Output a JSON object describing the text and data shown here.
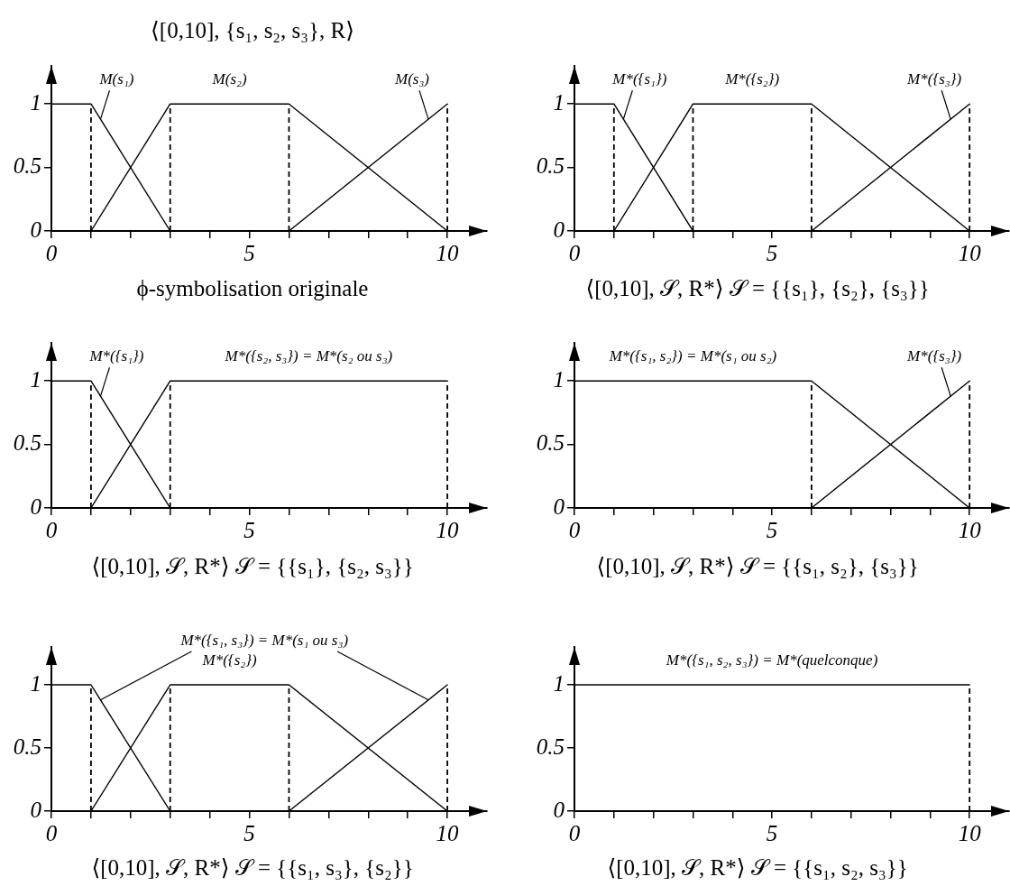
{
  "chart_data": [
    {
      "type": "line",
      "title": "⟨[0,10], {s₁, s₂, s₃}, R⟩",
      "annotations": [
        "ϕ-symbolisation originale"
      ],
      "xlim": [
        0,
        11
      ],
      "ylim": [
        0,
        1.3
      ],
      "xticks": [
        0,
        {
          "value": 1,
          "label": null
        },
        {
          "value": 2,
          "label": null
        },
        {
          "value": 3,
          "label": null
        },
        {
          "value": 4,
          "label": null
        },
        5,
        {
          "value": 6,
          "label": null
        },
        {
          "value": 7,
          "label": null
        },
        {
          "value": 8,
          "label": null
        },
        {
          "value": 9,
          "label": null
        },
        10
      ],
      "yticks": [
        0,
        0.5,
        1
      ],
      "series": [
        {
          "name": "M(s₁)",
          "color": "#000000",
          "x": [
            0,
            1,
            3
          ],
          "values": [
            1,
            1,
            0
          ]
        },
        {
          "name": "M(s₂)",
          "color": "#000000",
          "x": [
            1,
            3,
            6,
            10
          ],
          "values": [
            0,
            1,
            1,
            0
          ]
        },
        {
          "name": "M(s₃)",
          "color": "#000000",
          "x": [
            6,
            10
          ],
          "values": [
            0,
            1
          ]
        }
      ],
      "ref_lines": [
        {
          "axis": "x",
          "value": 1,
          "color": "#000000",
          "line_style": "dashed"
        },
        {
          "axis": "x",
          "value": 3,
          "color": "#000000",
          "line_style": "dashed"
        },
        {
          "axis": "x",
          "value": 6,
          "color": "#000000",
          "line_style": "dashed"
        },
        {
          "axis": "x",
          "value": 10,
          "color": "#000000",
          "line_style": "dashed"
        }
      ]
    },
    {
      "type": "line",
      "annotations": [
        "⟨[0,10], 𝒮, R*⟩ 𝒮 = {{s₁}, {s₂}, {s₃}}"
      ],
      "xlim": [
        0,
        11
      ],
      "ylim": [
        0,
        1.3
      ],
      "xticks": [
        0,
        {
          "value": 1,
          "label": null
        },
        {
          "value": 2,
          "label": null
        },
        {
          "value": 3,
          "label": null
        },
        {
          "value": 4,
          "label": null
        },
        5,
        {
          "value": 6,
          "label": null
        },
        {
          "value": 7,
          "label": null
        },
        {
          "value": 8,
          "label": null
        },
        {
          "value": 9,
          "label": null
        },
        10
      ],
      "yticks": [
        0,
        0.5,
        1
      ],
      "series": [
        {
          "name": "M*({s₁})",
          "color": "#000000",
          "x": [
            0,
            1,
            3
          ],
          "values": [
            1,
            1,
            0
          ]
        },
        {
          "name": "M*({s₂})",
          "color": "#000000",
          "x": [
            1,
            3,
            6,
            10
          ],
          "values": [
            0,
            1,
            1,
            0
          ]
        },
        {
          "name": "M*({s₃})",
          "color": "#000000",
          "x": [
            6,
            10
          ],
          "values": [
            0,
            1
          ]
        }
      ],
      "ref_lines": [
        {
          "axis": "x",
          "value": 1,
          "color": "#000000",
          "line_style": "dashed"
        },
        {
          "axis": "x",
          "value": 3,
          "color": "#000000",
          "line_style": "dashed"
        },
        {
          "axis": "x",
          "value": 6,
          "color": "#000000",
          "line_style": "dashed"
        },
        {
          "axis": "x",
          "value": 10,
          "color": "#000000",
          "line_style": "dashed"
        }
      ]
    },
    {
      "type": "line",
      "annotations": [
        "⟨[0,10], 𝒮, R*⟩ 𝒮 = {{s₁}, {s₂, s₃}}"
      ],
      "xlim": [
        0,
        11
      ],
      "ylim": [
        0,
        1.3
      ],
      "xticks": [
        0,
        {
          "value": 1,
          "label": null
        },
        {
          "value": 2,
          "label": null
        },
        {
          "value": 3,
          "label": null
        },
        {
          "value": 4,
          "label": null
        },
        5,
        {
          "value": 6,
          "label": null
        },
        {
          "value": 7,
          "label": null
        },
        {
          "value": 8,
          "label": null
        },
        {
          "value": 9,
          "label": null
        },
        10
      ],
      "yticks": [
        0,
        0.5,
        1
      ],
      "series": [
        {
          "name": "M*({s₁})",
          "color": "#000000",
          "x": [
            0,
            1,
            3
          ],
          "values": [
            1,
            1,
            0
          ]
        },
        {
          "name": "M*({s₂, s₃}) = M*(s₂ ou s₃)",
          "color": "#000000",
          "x": [
            1,
            3,
            10
          ],
          "values": [
            0,
            1,
            1
          ]
        }
      ],
      "ref_lines": [
        {
          "axis": "x",
          "value": 1,
          "color": "#000000",
          "line_style": "dashed"
        },
        {
          "axis": "x",
          "value": 3,
          "color": "#000000",
          "line_style": "dashed"
        },
        {
          "axis": "x",
          "value": 10,
          "color": "#000000",
          "line_style": "dashed"
        }
      ]
    },
    {
      "type": "line",
      "annotations": [
        "⟨[0,10], 𝒮, R*⟩ 𝒮 = {{s₁, s₂}, {s₃}}"
      ],
      "xlim": [
        0,
        11
      ],
      "ylim": [
        0,
        1.3
      ],
      "xticks": [
        0,
        {
          "value": 1,
          "label": null
        },
        {
          "value": 2,
          "label": null
        },
        {
          "value": 3,
          "label": null
        },
        {
          "value": 4,
          "label": null
        },
        5,
        {
          "value": 6,
          "label": null
        },
        {
          "value": 7,
          "label": null
        },
        {
          "value": 8,
          "label": null
        },
        {
          "value": 9,
          "label": null
        },
        10
      ],
      "yticks": [
        0,
        0.5,
        1
      ],
      "series": [
        {
          "name": "M*({s₁, s₂}) = M*(s₁ ou s₂)",
          "color": "#000000",
          "x": [
            0,
            6,
            10
          ],
          "values": [
            1,
            1,
            0
          ]
        },
        {
          "name": "M*({s₃})",
          "color": "#000000",
          "x": [
            6,
            10
          ],
          "values": [
            0,
            1
          ]
        }
      ],
      "ref_lines": [
        {
          "axis": "x",
          "value": 6,
          "color": "#000000",
          "line_style": "dashed"
        },
        {
          "axis": "x",
          "value": 10,
          "color": "#000000",
          "line_style": "dashed"
        }
      ]
    },
    {
      "type": "line",
      "annotations": [
        "⟨[0,10], 𝒮, R*⟩ 𝒮 = {{s₁, s₃}, {s₂}}"
      ],
      "xlim": [
        0,
        11
      ],
      "ylim": [
        0,
        1.3
      ],
      "xticks": [
        0,
        {
          "value": 1,
          "label": null
        },
        {
          "value": 2,
          "label": null
        },
        {
          "value": 3,
          "label": null
        },
        {
          "value": 4,
          "label": null
        },
        5,
        {
          "value": 6,
          "label": null
        },
        {
          "value": 7,
          "label": null
        },
        {
          "value": 8,
          "label": null
        },
        {
          "value": 9,
          "label": null
        },
        10
      ],
      "yticks": [
        0,
        0.5,
        1
      ],
      "series": [
        {
          "name": "M*({s₁, s₃}) = M*(s₁ ou s₃)",
          "color": "#000000",
          "x": [
            0,
            1,
            3,
            6,
            10
          ],
          "values": [
            1,
            1,
            0,
            0,
            1
          ]
        },
        {
          "name": "M*({s₂})",
          "color": "#000000",
          "x": [
            1,
            3,
            6,
            10
          ],
          "values": [
            0,
            1,
            1,
            0
          ]
        }
      ],
      "ref_lines": [
        {
          "axis": "x",
          "value": 1,
          "color": "#000000",
          "line_style": "dashed"
        },
        {
          "axis": "x",
          "value": 3,
          "color": "#000000",
          "line_style": "dashed"
        },
        {
          "axis": "x",
          "value": 6,
          "color": "#000000",
          "line_style": "dashed"
        },
        {
          "axis": "x",
          "value": 10,
          "color": "#000000",
          "line_style": "dashed"
        }
      ]
    },
    {
      "type": "line",
      "annotations": [
        "⟨[0,10], 𝒮, R*⟩ 𝒮 = {{s₁, s₂, s₃}}"
      ],
      "xlim": [
        0,
        11
      ],
      "ylim": [
        0,
        1.3
      ],
      "xticks": [
        0,
        {
          "value": 1,
          "label": null
        },
        {
          "value": 2,
          "label": null
        },
        {
          "value": 3,
          "label": null
        },
        {
          "value": 4,
          "label": null
        },
        5,
        {
          "value": 6,
          "label": null
        },
        {
          "value": 7,
          "label": null
        },
        {
          "value": 8,
          "label": null
        },
        {
          "value": 9,
          "label": null
        },
        10
      ],
      "yticks": [
        0,
        0.5,
        1
      ],
      "series": [
        {
          "name": "M*({s₁, s₂, s₃}) = M*(quelconque)",
          "color": "#000000",
          "x": [
            0,
            10
          ],
          "values": [
            1,
            1
          ]
        }
      ],
      "ref_lines": [
        {
          "axis": "x",
          "value": 10,
          "color": "#000000",
          "line_style": "dashed"
        }
      ]
    }
  ]
}
